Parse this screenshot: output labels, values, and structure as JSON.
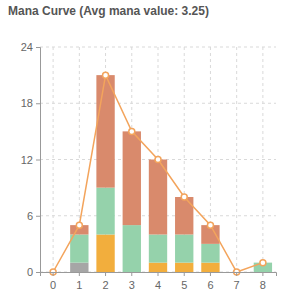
{
  "chart_data": {
    "type": "bar",
    "title": "Mana Curve (Avg mana value: 3.25)",
    "stacked": true,
    "grid": true,
    "categories": [
      "0",
      "1",
      "2",
      "3",
      "4",
      "5",
      "6",
      "7",
      "8"
    ],
    "ylim": [
      0,
      24
    ],
    "yticks": [
      0,
      6,
      12,
      18,
      24
    ],
    "series": [
      {
        "color": "#a6a6a6",
        "values": [
          0,
          1,
          0,
          0,
          0,
          0,
          0,
          0,
          0
        ]
      },
      {
        "color": "#f2ae3d",
        "values": [
          0,
          0,
          4,
          0,
          1,
          1,
          1,
          0,
          0
        ]
      },
      {
        "color": "#95d2ab",
        "values": [
          0,
          3,
          5,
          5,
          3,
          3,
          2,
          0,
          1
        ]
      },
      {
        "color": "#d98a6c",
        "values": [
          0,
          1,
          12,
          10,
          8,
          4,
          2,
          0,
          0
        ]
      },
      {
        "type": "line",
        "color": "#f3a45c",
        "marker": "circle",
        "values": [
          0,
          5,
          21,
          15,
          12,
          8,
          5,
          0,
          1
        ]
      }
    ]
  }
}
